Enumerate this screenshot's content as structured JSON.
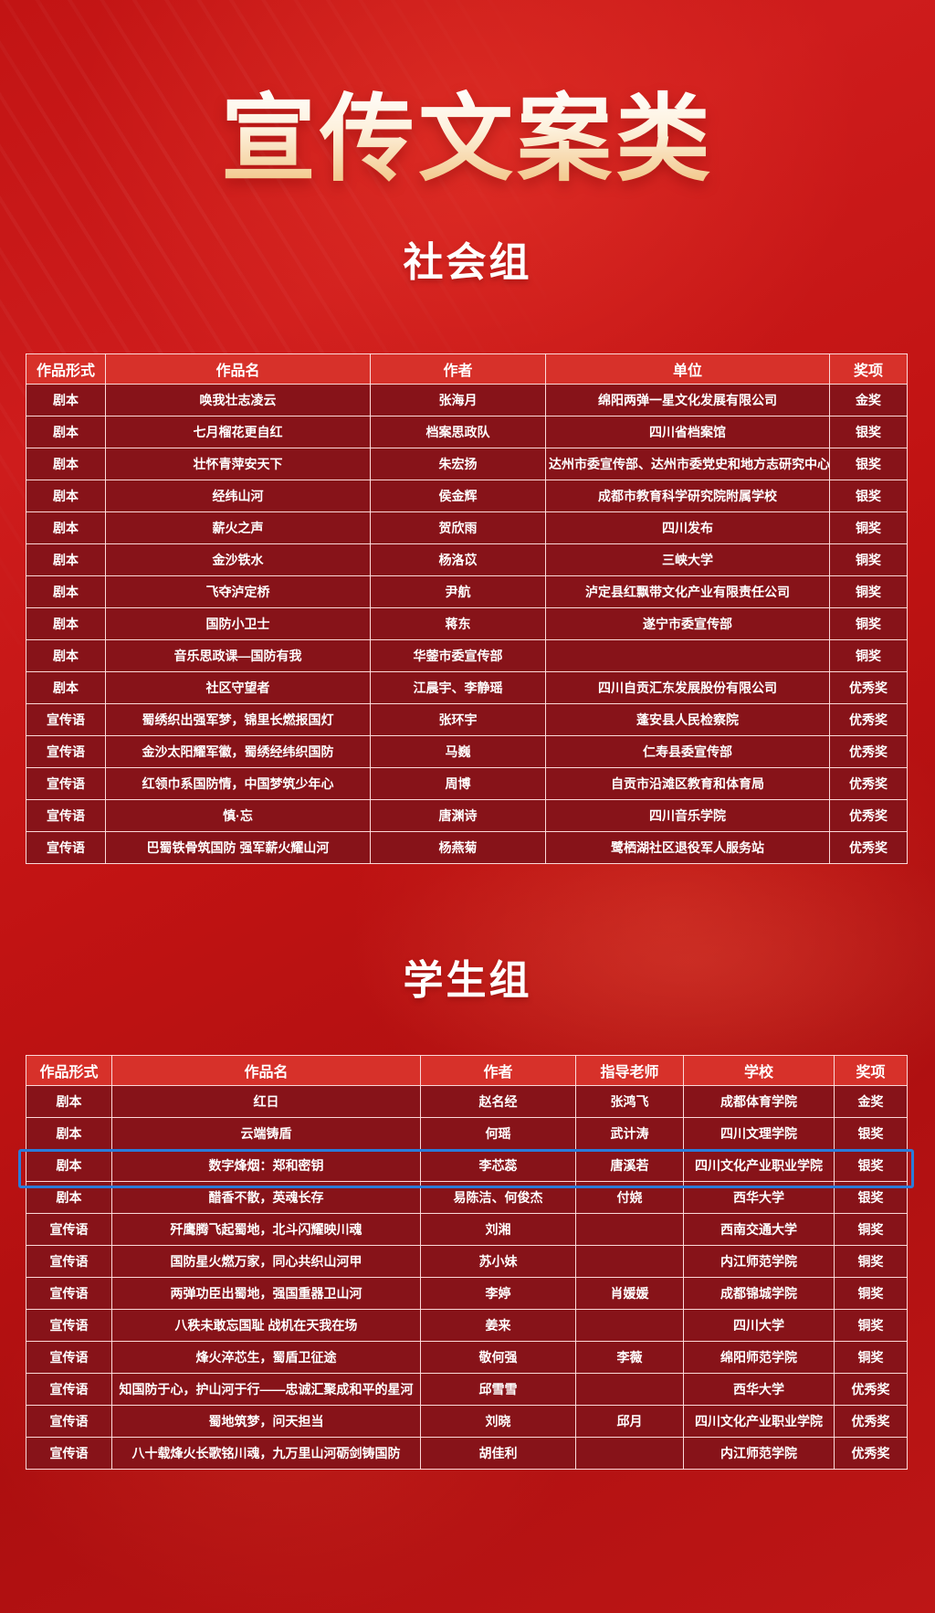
{
  "title": "宣传文案类",
  "colors": {
    "background_red": "#c21414",
    "table_header_bg": "#d7312a",
    "table_row_bg": "#871319",
    "table_border": "#ffe4e4",
    "highlight_border_blue": "#2b7cd9",
    "title_gradient_start": "#ffffff",
    "title_gradient_end": "#edba75"
  },
  "sections": [
    {
      "heading": "社会组",
      "columns": [
        "作品形式",
        "作品名",
        "作者",
        "单位",
        "奖项"
      ],
      "rows": [
        [
          "剧本",
          "唤我壮志凌云",
          "张海月",
          "绵阳两弹一星文化发展有限公司",
          "金奖"
        ],
        [
          "剧本",
          "七月榴花更自红",
          "档案思政队",
          "四川省档案馆",
          "银奖"
        ],
        [
          "剧本",
          "壮怀青萍安天下",
          "朱宏扬",
          "达州市委宣传部、达州市委党史和地方志研究中心",
          "银奖"
        ],
        [
          "剧本",
          "经纬山河",
          "侯金辉",
          "成都市教育科学研究院附属学校",
          "银奖"
        ],
        [
          "剧本",
          "薪火之声",
          "贺欣雨",
          "四川发布",
          "铜奖"
        ],
        [
          "剧本",
          "金沙铁水",
          "杨洛苡",
          "三峡大学",
          "铜奖"
        ],
        [
          "剧本",
          "飞夺泸定桥",
          "尹航",
          "泸定县红飘带文化产业有限责任公司",
          "铜奖"
        ],
        [
          "剧本",
          "国防小卫士",
          "蒋东",
          "遂宁市委宣传部",
          "铜奖"
        ],
        [
          "剧本",
          "音乐思政课—国防有我",
          "华蓥市委宣传部",
          "",
          "铜奖"
        ],
        [
          "剧本",
          "社区守望者",
          "江晨宇、李静瑶",
          "四川自贡汇东发展股份有限公司",
          "优秀奖"
        ],
        [
          "宣传语",
          "蜀绣织出强军梦，锦里长燃报国灯",
          "张环宇",
          "蓬安县人民检察院",
          "优秀奖"
        ],
        [
          "宣传语",
          "金沙太阳耀军徽，蜀绣经纬织国防",
          "马巍",
          "仁寿县委宣传部",
          "优秀奖"
        ],
        [
          "宣传语",
          "红领巾系国防情，中国梦筑少年心",
          "周博",
          "自贡市沿滩区教育和体育局",
          "优秀奖"
        ],
        [
          "宣传语",
          "慎·忘",
          "唐渊诗",
          "四川音乐学院",
          "优秀奖"
        ],
        [
          "宣传语",
          "巴蜀铁骨筑国防 强军薪火耀山河",
          "杨燕菊",
          "鹭栖湖社区退役军人服务站",
          "优秀奖"
        ]
      ]
    },
    {
      "heading": "学生组",
      "columns": [
        "作品形式",
        "作品名",
        "作者",
        "指导老师",
        "学校",
        "奖项"
      ],
      "highlight_row_index": 2,
      "rows": [
        [
          "剧本",
          "红日",
          "赵名经",
          "张鸿飞",
          "成都体育学院",
          "金奖"
        ],
        [
          "剧本",
          "云端铸盾",
          "何瑶",
          "武计涛",
          "四川文理学院",
          "银奖"
        ],
        [
          "剧本",
          "数字烽烟：郑和密钥",
          "李芯蕊",
          "唐溪若",
          "四川文化产业职业学院",
          "银奖"
        ],
        [
          "剧本",
          "醋香不散，英魂长存",
          "易陈洁、何俊杰",
          "付娆",
          "西华大学",
          "银奖"
        ],
        [
          "宣传语",
          "歼鹰腾飞起蜀地，北斗闪耀映川魂",
          "刘湘",
          "",
          "西南交通大学",
          "铜奖"
        ],
        [
          "宣传语",
          "国防星火燃万家，同心共织山河甲",
          "苏小妹",
          "",
          "内江师范学院",
          "铜奖"
        ],
        [
          "宣传语",
          "两弹功臣出蜀地，强国重器卫山河",
          "李婷",
          "肖媛媛",
          "成都锦城学院",
          "铜奖"
        ],
        [
          "宣传语",
          "八秩未敢忘国耻 战机在天我在场",
          "姜来",
          "",
          "四川大学",
          "铜奖"
        ],
        [
          "宣传语",
          "烽火淬芯生，蜀盾卫征途",
          "敬何强",
          "李薇",
          "绵阳师范学院",
          "铜奖"
        ],
        [
          "宣传语",
          "知国防于心，护山河于行——忠诚汇聚成和平的星河",
          "邱雪雪",
          "",
          "西华大学",
          "优秀奖"
        ],
        [
          "宣传语",
          "蜀地筑梦，问天担当",
          "刘晓",
          "邱月",
          "四川文化产业职业学院",
          "优秀奖"
        ],
        [
          "宣传语",
          "八十载烽火长歌铭川魂，九万里山河砺剑铸国防",
          "胡佳利",
          "",
          "内江师范学院",
          "优秀奖"
        ]
      ]
    }
  ]
}
